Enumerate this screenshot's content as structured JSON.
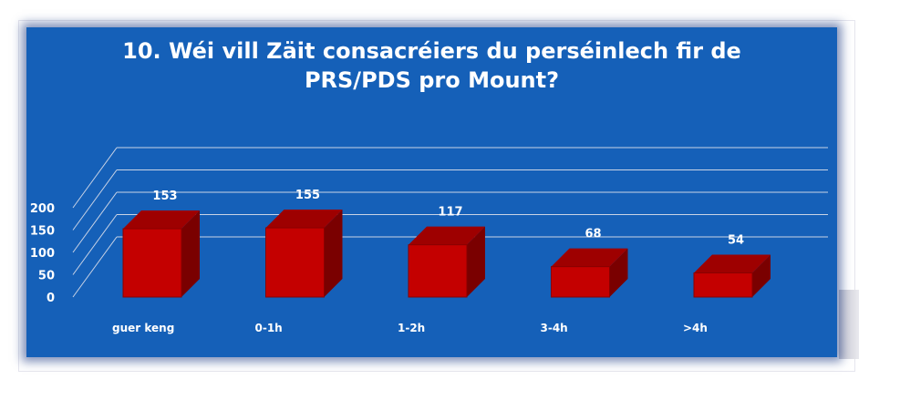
{
  "chart_data": {
    "type": "bar",
    "title": "10. Wéi vill Zäit consacréiers du perséinlech fir de\nPRS/PDS pro Mount?",
    "categories": [
      "guer keng",
      "0-1h",
      "1-2h",
      "3-4h",
      ">4h"
    ],
    "values": [
      153,
      155,
      117,
      68,
      54
    ],
    "yticks": [
      "0",
      "50",
      "100",
      "150",
      "200"
    ],
    "ylim": [
      0,
      200
    ],
    "grid": true,
    "legend": "none",
    "colors": {
      "background": "#1560b8",
      "bar_front": "#c40000",
      "bar_side": "#7a0000",
      "bar_top": "#9e0000",
      "text": "#ffffff"
    }
  }
}
